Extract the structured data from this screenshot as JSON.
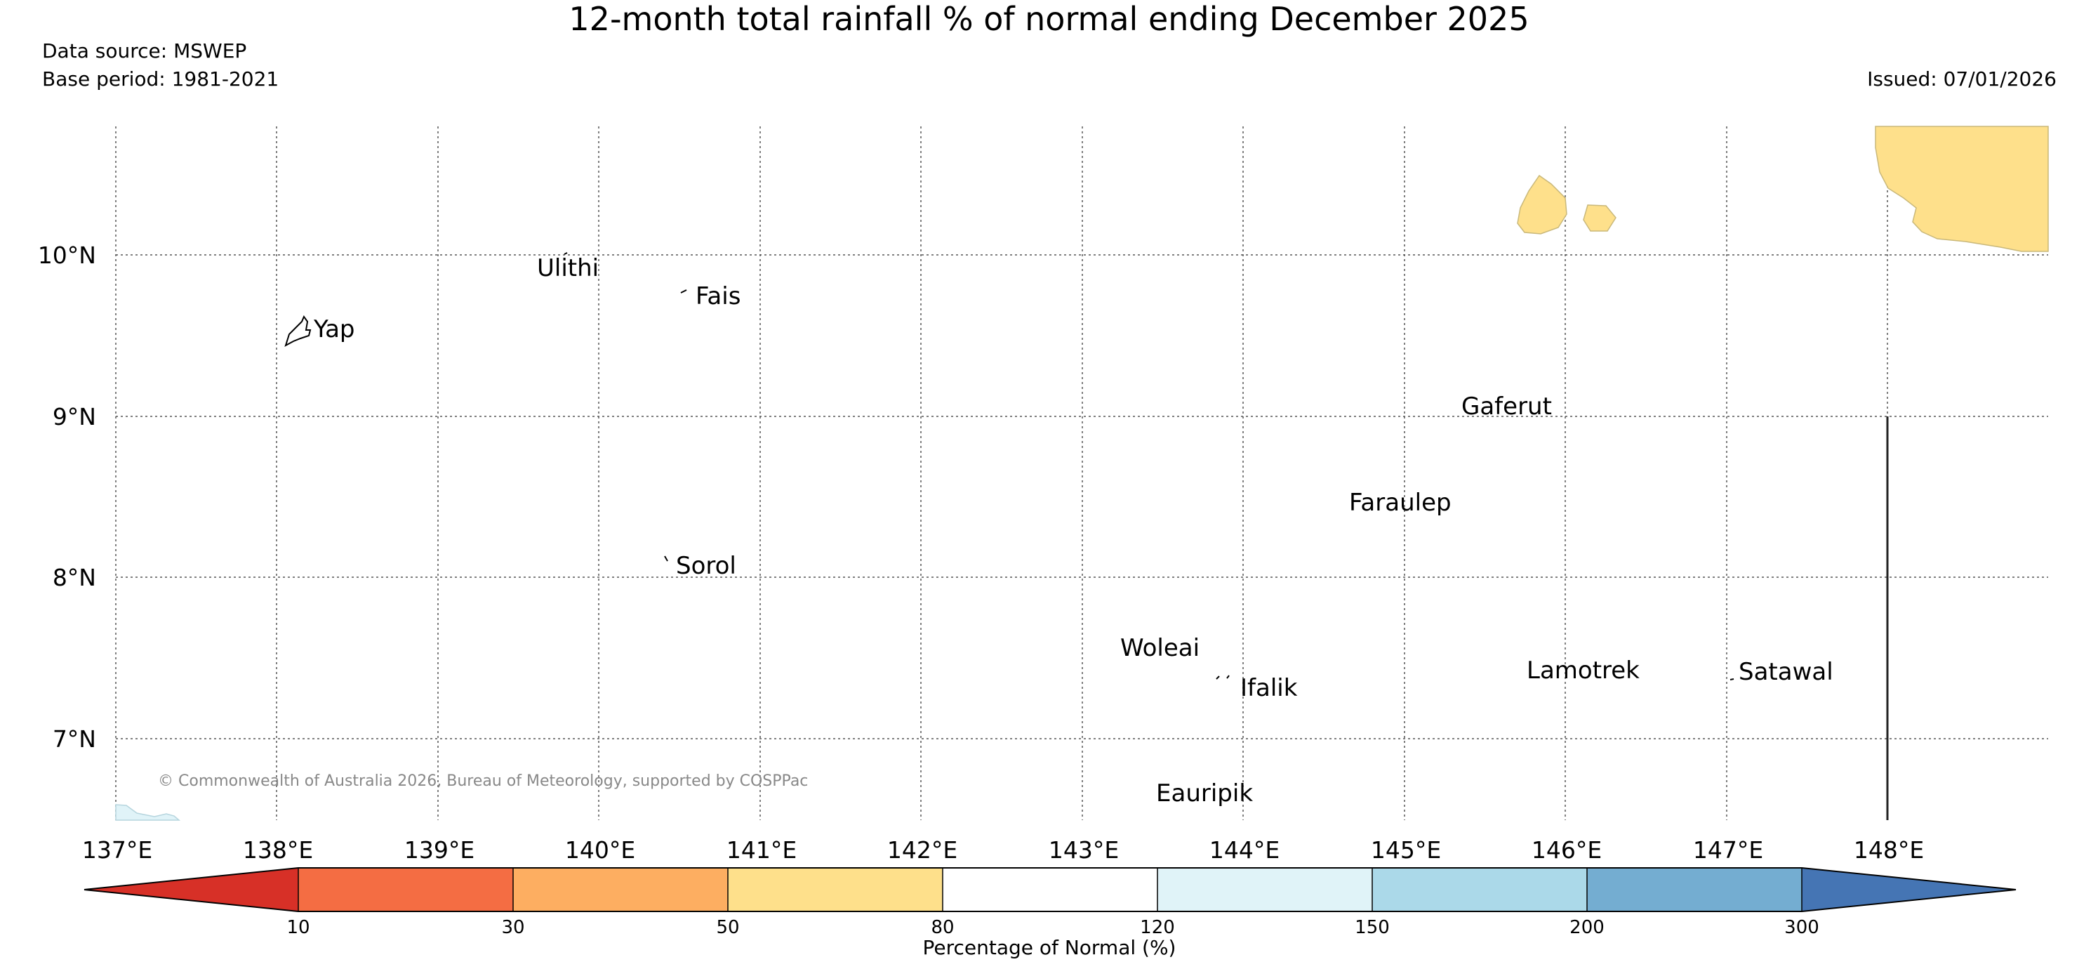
{
  "header": {
    "title": "12-month total rainfall % of normal ending December 2025",
    "data_source": "Data source: MSWEP",
    "base_period": "Base period: 1981-2021",
    "issued": "Issued: 07/01/2026"
  },
  "map": {
    "lon_range": [
      137,
      149
    ],
    "lat_range": [
      6.5,
      10.8
    ],
    "lon_ticks": [
      "137°E",
      "138°E",
      "139°E",
      "140°E",
      "141°E",
      "142°E",
      "143°E",
      "144°E",
      "145°E",
      "146°E",
      "147°E",
      "148°E"
    ],
    "lat_ticks": [
      "10°N",
      "9°N",
      "8°N",
      "7°N"
    ],
    "copyright": "© Commonwealth of Australia 2026, Bureau of Meteorology, supported by COSPPac",
    "places": [
      "Yap",
      "Ulithi",
      "Fais",
      "Gaferut",
      "Faraulep",
      "Sorol",
      "Woleai",
      "Ifalik",
      "Lamotrek",
      "Satawal",
      "Eauripik"
    ],
    "anomaly_fill": "#fee08b",
    "wet_fill": "#e0f3f8",
    "ocean": "#ffffff"
  },
  "colorbar": {
    "label": "Percentage of Normal (%)",
    "ticks": [
      "10",
      "30",
      "50",
      "80",
      "120",
      "150",
      "200",
      "300"
    ],
    "colors": [
      "#d73027",
      "#f46d43",
      "#fdae61",
      "#fee08b",
      "#ffffff",
      "#e0f3f8",
      "#abd9e9",
      "#74add1",
      "#4575b4"
    ]
  }
}
